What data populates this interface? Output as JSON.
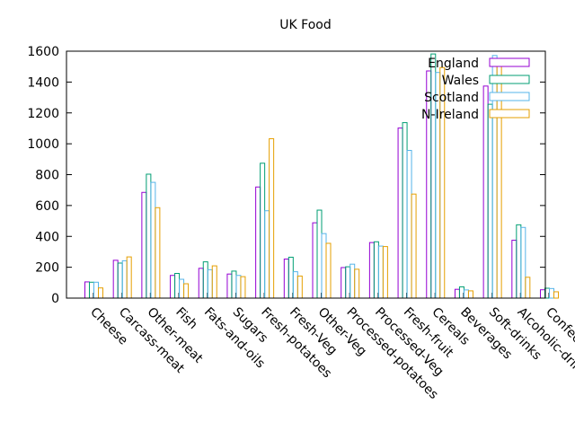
{
  "chart_data": {
    "type": "bar",
    "title": "UK Food",
    "xlabel": "",
    "ylabel": "",
    "ylim": [
      0,
      1600
    ],
    "yticks": [
      0,
      200,
      400,
      600,
      800,
      1000,
      1200,
      1400,
      1600
    ],
    "grid": false,
    "legend_position": "top-right",
    "categories": [
      "Cheese",
      "Carcass-meat",
      "Other-meat",
      "Fish",
      "Fats-and-oils",
      "Sugars",
      "Fresh-potatoes",
      "Fresh-Veg",
      "Other-Veg",
      "Processed-potatoes",
      "Processed-Veg",
      "Fresh-fruit",
      "Cereals",
      "Beverages",
      "Soft-drinks",
      "Alcoholic-drinks",
      "Confectionery"
    ],
    "series": [
      {
        "name": "England",
        "color": "#9400d3",
        "values": [
          105,
          245,
          685,
          147,
          193,
          156,
          720,
          253,
          488,
          198,
          360,
          1102,
          1472,
          57,
          1374,
          375,
          54
        ]
      },
      {
        "name": "Wales",
        "color": "#009e73",
        "values": [
          103,
          227,
          803,
          160,
          235,
          175,
          874,
          265,
          570,
          203,
          365,
          1137,
          1582,
          73,
          1256,
          475,
          64
        ]
      },
      {
        "name": "Scotland",
        "color": "#56b4e9",
        "values": [
          103,
          242,
          750,
          122,
          184,
          147,
          566,
          171,
          418,
          220,
          337,
          957,
          1462,
          53,
          1572,
          458,
          62
        ]
      },
      {
        "name": "N-Ireland",
        "color": "#e69f00",
        "values": [
          66,
          267,
          586,
          93,
          209,
          139,
          1033,
          143,
          355,
          187,
          334,
          674,
          1494,
          47,
          1506,
          135,
          41
        ]
      }
    ]
  }
}
